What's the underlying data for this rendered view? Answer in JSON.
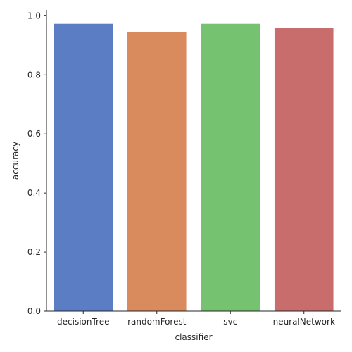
{
  "chart_data": {
    "type": "bar",
    "xlabel": "classifier",
    "ylabel": "accuracy",
    "categories": [
      "decisionTree",
      "randomForest",
      "svc",
      "neuralNetwork"
    ],
    "values": [
      0.973,
      0.944,
      0.973,
      0.958
    ],
    "colors": [
      "#5a7dc4",
      "#da8b5d",
      "#75c270",
      "#c86c6c"
    ],
    "ylim": [
      0,
      1.02
    ],
    "yticks": [
      "0.0",
      "0.2",
      "0.4",
      "0.6",
      "0.8",
      "1.0"
    ],
    "grid": false,
    "legend": "none"
  }
}
